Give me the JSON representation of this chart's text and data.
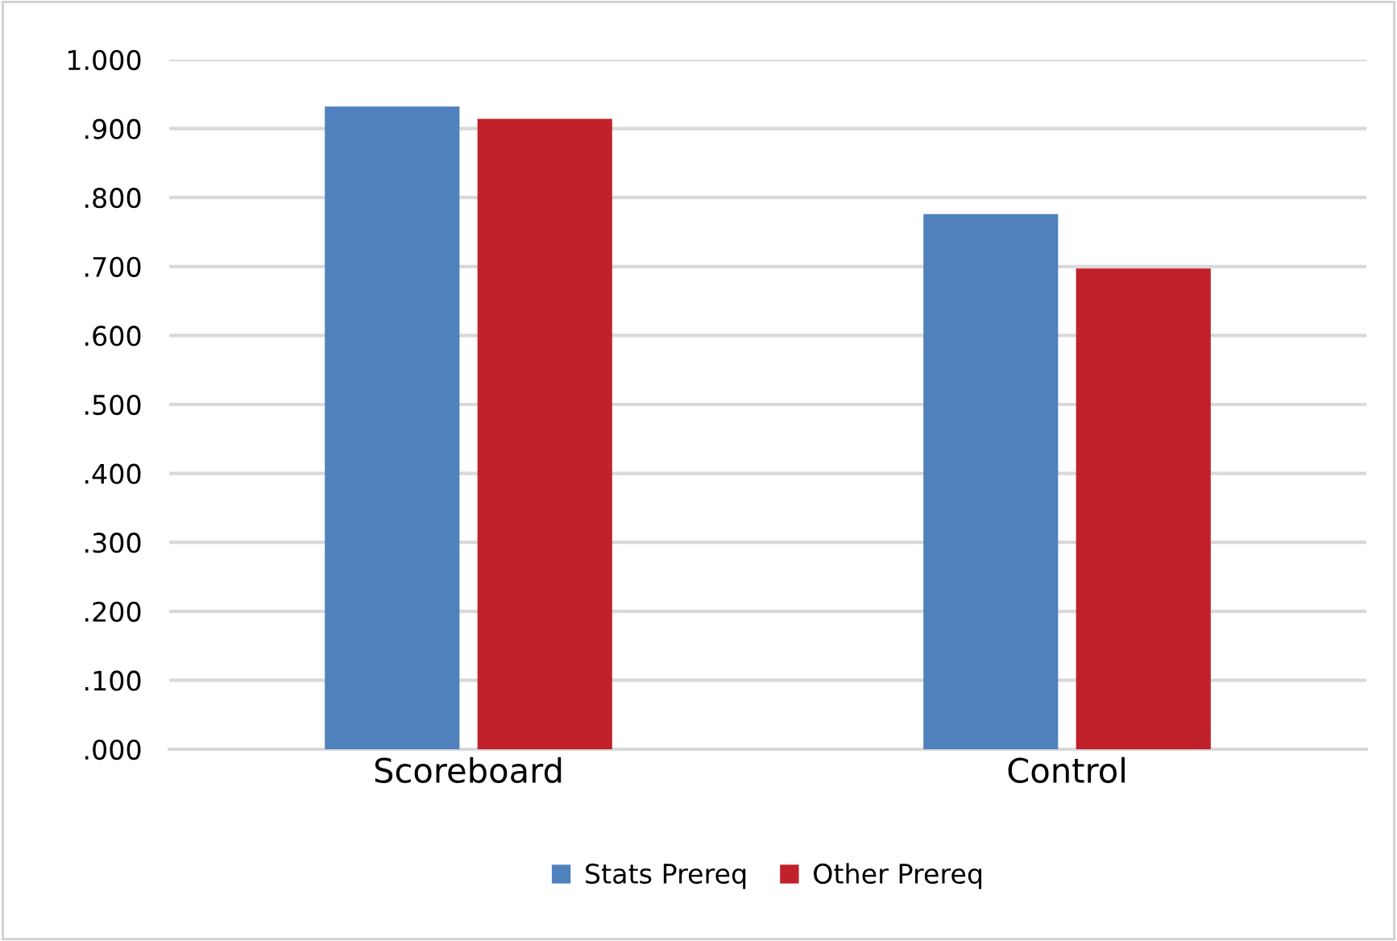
{
  "chart_data": {
    "type": "bar",
    "categories": [
      "Scoreboard",
      "Control"
    ],
    "series": [
      {
        "name": "Stats Prereq",
        "color": "#4f81bd",
        "values": [
          0.932,
          0.776
        ]
      },
      {
        "name": "Other Prereq",
        "color": "#c0212a",
        "values": [
          0.914,
          0.697
        ]
      }
    ],
    "ylim": [
      0,
      1
    ],
    "yticks": [
      {
        "value": 0,
        "label": ".000"
      },
      {
        "value": 0.1,
        "label": ".100"
      },
      {
        "value": 0.2,
        "label": ".200"
      },
      {
        "value": 0.3,
        "label": ".300"
      },
      {
        "value": 0.4,
        "label": ".400"
      },
      {
        "value": 0.5,
        "label": ".500"
      },
      {
        "value": 0.6,
        "label": ".600"
      },
      {
        "value": 0.7,
        "label": ".700"
      },
      {
        "value": 0.8,
        "label": ".800"
      },
      {
        "value": 0.9,
        "label": ".900"
      },
      {
        "value": 1,
        "label": "1.000"
      }
    ],
    "grid": "y",
    "legend": "bottom"
  }
}
